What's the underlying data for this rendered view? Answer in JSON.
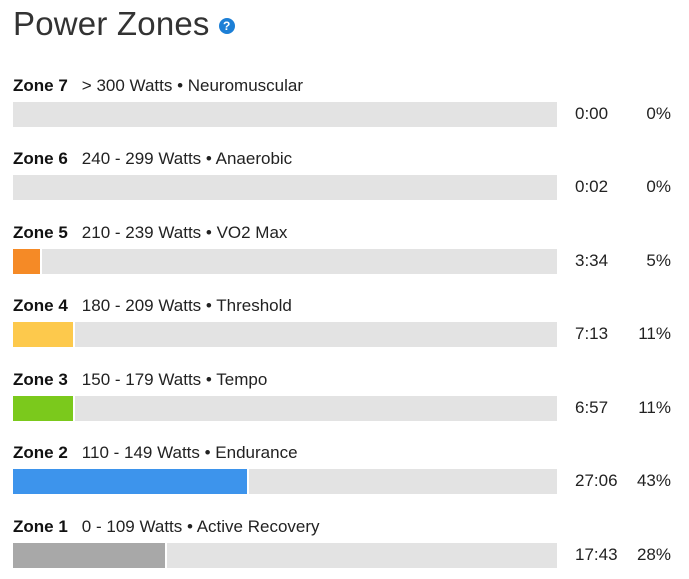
{
  "page": {
    "title": "Power Zones",
    "help_glyph": "?",
    "help_icon": "question-circle-icon"
  },
  "zones": [
    {
      "name": "Zone 7",
      "desc": "> 300 Watts • Neuromuscular",
      "time": "0:00",
      "pct": "0%",
      "fraction": 0.0,
      "color": "#e3e3e3"
    },
    {
      "name": "Zone 6",
      "desc": "240 - 299 Watts • Anaerobic",
      "time": "0:02",
      "pct": "0%",
      "fraction": 0.0,
      "color": "#e3e3e3"
    },
    {
      "name": "Zone 5",
      "desc": "210 - 239 Watts • VO2 Max",
      "time": "3:34",
      "pct": "5%",
      "fraction": 0.05,
      "color": "#f58a26"
    },
    {
      "name": "Zone 4",
      "desc": "180 - 209 Watts • Threshold",
      "time": "7:13",
      "pct": "11%",
      "fraction": 0.11,
      "color": "#fdc94c"
    },
    {
      "name": "Zone 3",
      "desc": "150 - 179 Watts • Tempo",
      "time": "6:57",
      "pct": "11%",
      "fraction": 0.11,
      "color": "#7bc91c"
    },
    {
      "name": "Zone 2",
      "desc": "110 - 149 Watts • Endurance",
      "time": "27:06",
      "pct": "43%",
      "fraction": 0.43,
      "color": "#3d94ec"
    },
    {
      "name": "Zone 1",
      "desc": "0 - 109 Watts • Active Recovery",
      "time": "17:43",
      "pct": "28%",
      "fraction": 0.28,
      "color": "#a8a8a8"
    }
  ]
}
